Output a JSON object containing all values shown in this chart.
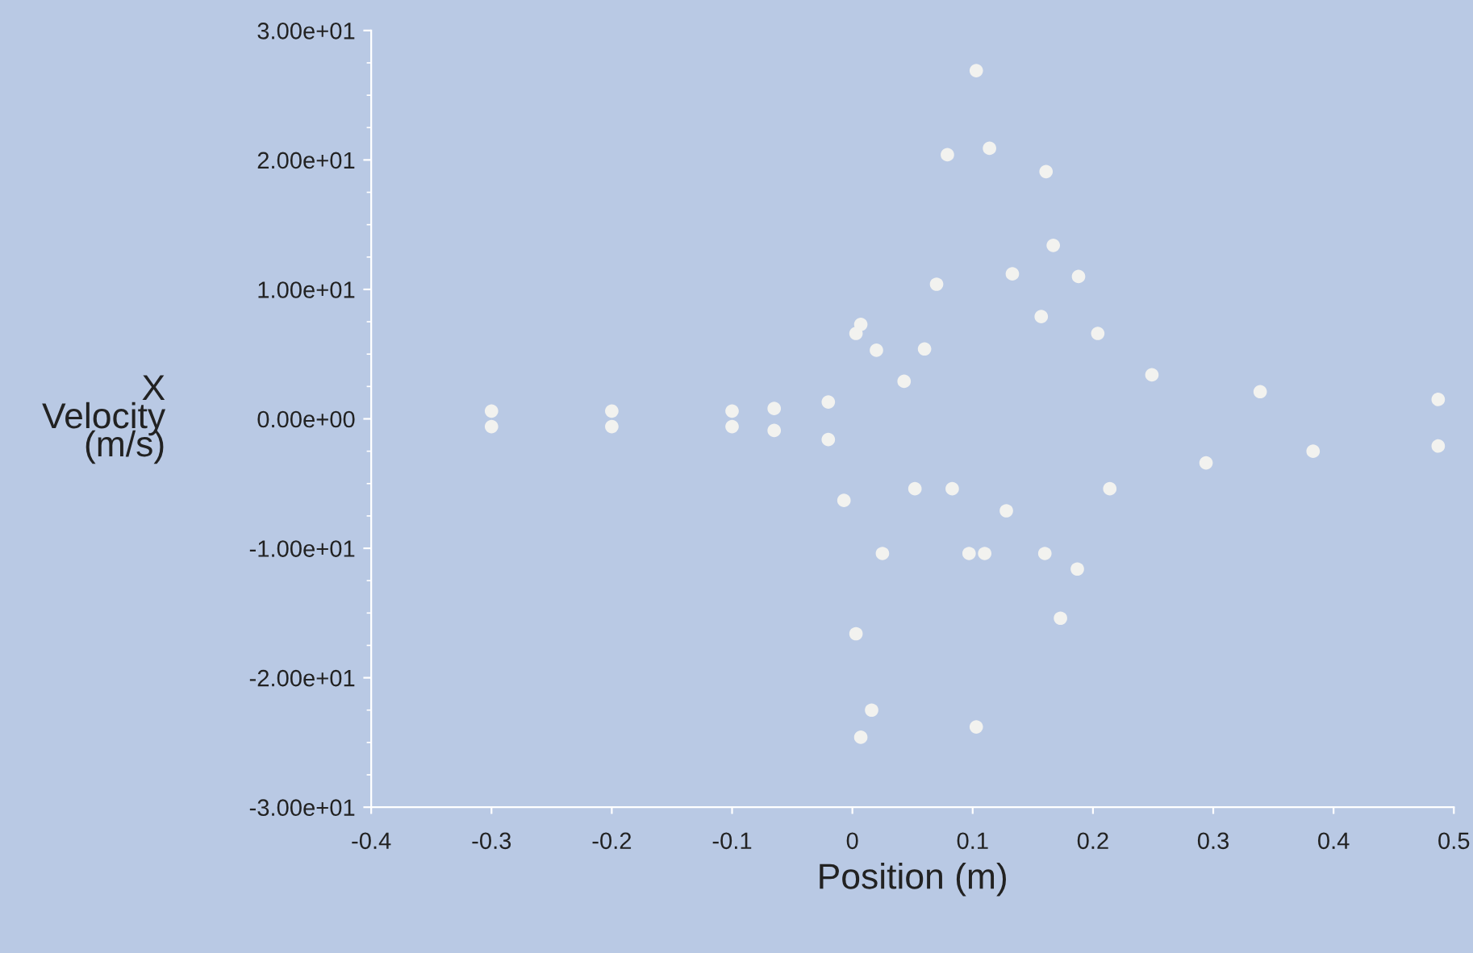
{
  "chart_data": {
    "type": "scatter",
    "xlabel": "Position (m)",
    "ylabel": "X\nVelocity\n(m/s)",
    "series": [
      {
        "color": "#f2f2ef",
        "x": [
          -0.3,
          -0.2,
          -0.1,
          -0.065,
          -0.02,
          0.003,
          0.007,
          0.02,
          0.043,
          0.06,
          0.07,
          0.079,
          0.103,
          0.114,
          0.133,
          0.157,
          0.161,
          0.167,
          0.188,
          0.204,
          0.249,
          0.339,
          0.487,
          -0.3,
          -0.2,
          -0.1,
          -0.065,
          -0.02,
          -0.007,
          0.003,
          0.007,
          0.016,
          0.025,
          0.052,
          0.083,
          0.097,
          0.103,
          0.11,
          0.128,
          0.16,
          0.173,
          0.187,
          0.214,
          0.294,
          0.383,
          0.487
        ],
        "values": [
          0.6,
          0.6,
          0.6,
          0.8,
          1.3,
          6.6,
          7.3,
          5.3,
          2.9,
          5.4,
          10.4,
          20.4,
          26.9,
          20.9,
          11.2,
          7.9,
          19.1,
          13.4,
          11,
          6.6,
          3.4,
          2.1,
          1.5,
          -0.6,
          -0.6,
          -0.6,
          -0.9,
          -1.6,
          -6.3,
          -16.6,
          -24.6,
          -22.5,
          -10.4,
          -5.4,
          -5.4,
          -10.4,
          -23.8,
          -10.4,
          -7.1,
          -10.4,
          -15.4,
          -11.6,
          -5.4,
          -3.4,
          -2.5,
          -2.1
        ]
      }
    ],
    "marker": "circle",
    "xlim": [
      -0.4,
      0.5
    ],
    "xticks": [
      -0.4,
      -0.3,
      -0.2,
      -0.1,
      0,
      0.1,
      0.2,
      0.3,
      0.4,
      0.5
    ],
    "ylim": [
      -30,
      30
    ],
    "yticks": [
      {
        "value": -30,
        "label": "-3.00e+01"
      },
      {
        "value": -20,
        "label": "-2.00e+01"
      },
      {
        "value": -10,
        "label": "-1.00e+01"
      },
      {
        "value": 0,
        "label": "0.00e+00"
      },
      {
        "value": 10,
        "label": "1.00e+01"
      },
      {
        "value": 20,
        "label": "2.00e+01"
      },
      {
        "value": 30,
        "label": "3.00e+01"
      }
    ],
    "grid": false
  }
}
